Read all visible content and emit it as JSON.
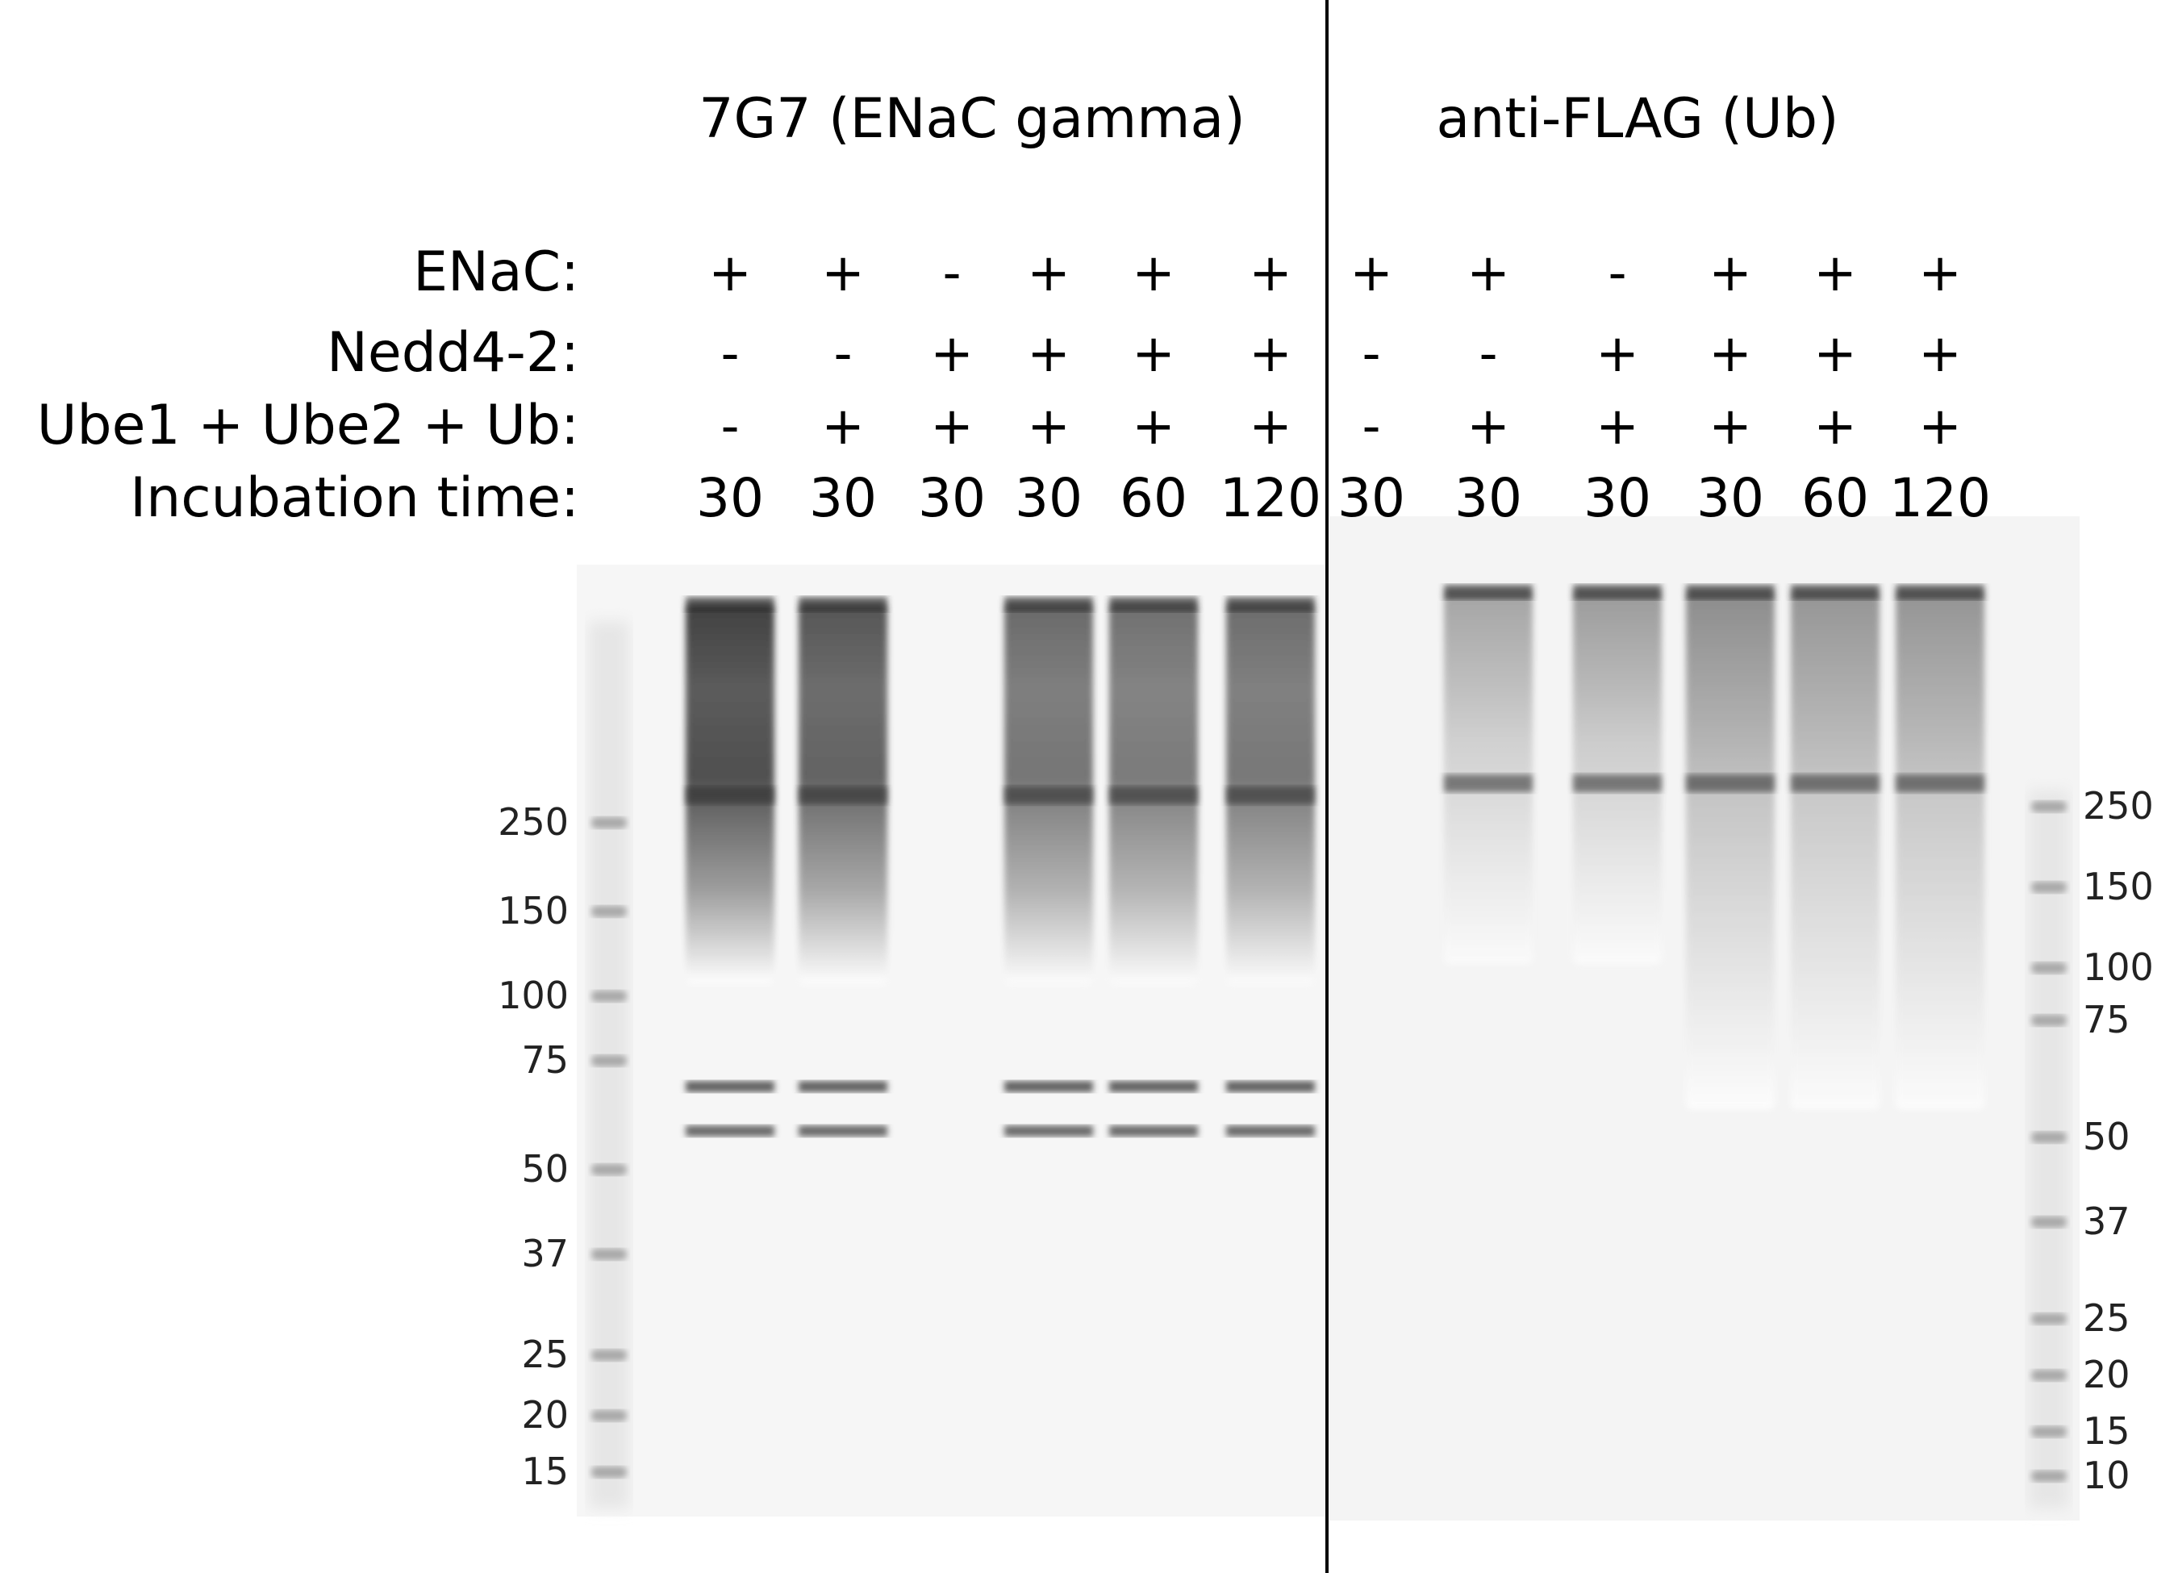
{
  "panels": [
    {
      "title": "7G7 (ENaC gamma)",
      "lanes": [
        {
          "enac": "+",
          "nedd": "-",
          "ube": "-",
          "time": "30",
          "present": true,
          "stain": 0.95
        },
        {
          "enac": "+",
          "nedd": "-",
          "ube": "+",
          "time": "30",
          "present": true,
          "stain": 0.8
        },
        {
          "enac": "-",
          "nedd": "+",
          "ube": "+",
          "time": "30",
          "present": false,
          "stain": 0.0
        },
        {
          "enac": "+",
          "nedd": "+",
          "ube": "+",
          "time": "30",
          "present": true,
          "stain": 0.65
        },
        {
          "enac": "+",
          "nedd": "+",
          "ube": "+",
          "time": "60",
          "present": true,
          "stain": 0.62
        },
        {
          "enac": "+",
          "nedd": "+",
          "ube": "+",
          "time": "120",
          "present": true,
          "stain": 0.64
        }
      ],
      "markers": [
        "250",
        "150",
        "100",
        "75",
        "50",
        "37",
        "25",
        "20",
        "15"
      ]
    },
    {
      "title": "anti-FLAG (Ub)",
      "lanes": [
        {
          "enac": "+",
          "nedd": "-",
          "ube": "-",
          "time": "30",
          "present": false,
          "stain": 0.0
        },
        {
          "enac": "+",
          "nedd": "-",
          "ube": "+",
          "time": "30",
          "present": true,
          "stain": 0.45
        },
        {
          "enac": "-",
          "nedd": "+",
          "ube": "+",
          "time": "30",
          "present": true,
          "stain": 0.55
        },
        {
          "enac": "+",
          "nedd": "+",
          "ube": "+",
          "time": "30",
          "present": true,
          "stain": 0.7
        },
        {
          "enac": "+",
          "nedd": "+",
          "ube": "+",
          "time": "60",
          "present": true,
          "stain": 0.6
        },
        {
          "enac": "+",
          "nedd": "+",
          "ube": "+",
          "time": "120",
          "present": true,
          "stain": 0.62
        }
      ],
      "markers": [
        "250",
        "150",
        "100",
        "75",
        "50",
        "37",
        "25",
        "20",
        "15",
        "10"
      ]
    }
  ],
  "row_labels": {
    "enac": "ENaC:",
    "nedd": "Nedd4-2:",
    "ube": "Ube1 + Ube2 + Ub:",
    "time": "Incubation time:"
  }
}
